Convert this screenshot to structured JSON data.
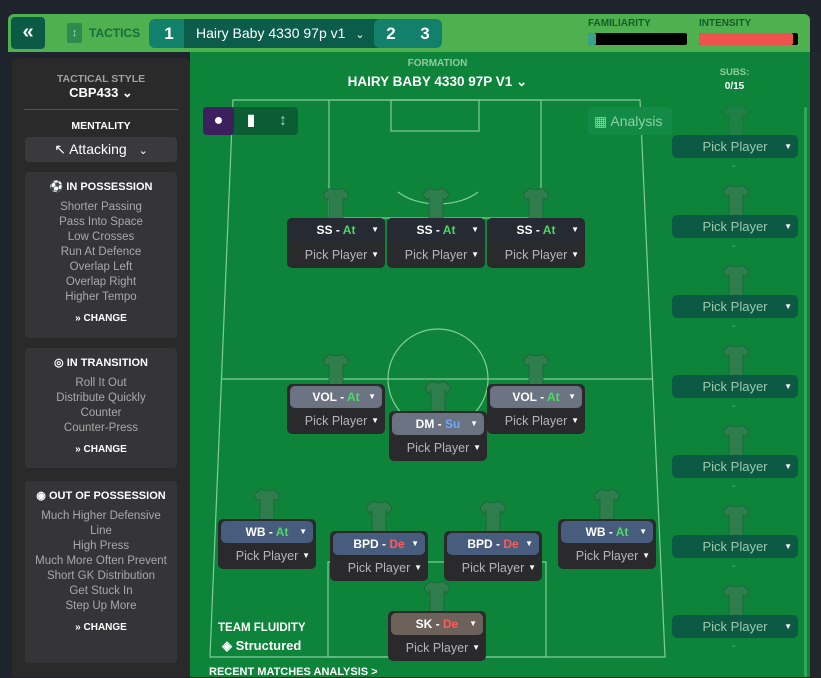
{
  "header": {
    "back_icon": "double-chevron-left-icon",
    "tactics_label": "TACTICS",
    "slot1": "1",
    "tactic_name": "Hairy Baby 4330 97p v1",
    "slot2": "2",
    "slot3": "3",
    "familiarity_label": "FAMILIARITY",
    "intensity_label": "INTENSITY",
    "familiarity_level": 0.08,
    "intensity_level": 0.95,
    "intensity_color": "#ef5350"
  },
  "sidebar": {
    "tactical_style_label": "TACTICAL STYLE",
    "tactical_style": "CBP433",
    "mentality_label": "MENTALITY",
    "mentality": "Attacking",
    "in_possession": {
      "title": "IN POSSESSION",
      "items": [
        "Shorter Passing",
        "Pass Into Space",
        "Low Crosses",
        "Run At Defence",
        "Overlap Left",
        "Overlap Right",
        "Higher Tempo"
      ],
      "change": "CHANGE"
    },
    "in_transition": {
      "title": "IN TRANSITION",
      "items": [
        "Roll It Out",
        "Distribute Quickly",
        "Counter",
        "Counter-Press"
      ],
      "change": "CHANGE"
    },
    "out_of_possession": {
      "title": "OUT OF POSSESSION",
      "items": [
        "Much Higher Defensive Line",
        "High Press",
        "Much More Often Prevent Short GK Distribution",
        "Get Stuck In",
        "Step Up More"
      ],
      "change": "CHANGE"
    }
  },
  "formation": {
    "label": "FORMATION",
    "name": "HAIRY BABY 4330 97P V1",
    "analysis": "Analysis",
    "team_fluidity_label": "TEAM FLUIDITY",
    "team_fluidity": "Structured",
    "recent": "RECENT MATCHES ANALYSIS >"
  },
  "players": [
    {
      "role": "SS",
      "duty": "At",
      "pick": "Pick Player",
      "style": "dark"
    },
    {
      "role": "SS",
      "duty": "At",
      "pick": "Pick Player",
      "style": "dark"
    },
    {
      "role": "SS",
      "duty": "At",
      "pick": "Pick Player",
      "style": "dark"
    },
    {
      "role": "VOL",
      "duty": "At",
      "pick": "Pick Player",
      "style": "gray"
    },
    {
      "role": "DM",
      "duty": "Su",
      "pick": "Pick Player",
      "style": "gray"
    },
    {
      "role": "VOL",
      "duty": "At",
      "pick": "Pick Player",
      "style": "gray"
    },
    {
      "role": "WB",
      "duty": "At",
      "pick": "Pick Player",
      "style": "blue"
    },
    {
      "role": "BPD",
      "duty": "De",
      "pick": "Pick Player",
      "style": "blue"
    },
    {
      "role": "BPD",
      "duty": "De",
      "pick": "Pick Player",
      "style": "blue"
    },
    {
      "role": "WB",
      "duty": "At",
      "pick": "Pick Player",
      "style": "blue"
    },
    {
      "role": "SK",
      "duty": "De",
      "pick": "Pick Player",
      "style": "brown"
    }
  ],
  "duty_colors": {
    "At": "#4cd964",
    "Su": "#6fa8ff",
    "De": "#ff5a5a"
  },
  "subs": {
    "label": "SUBS:",
    "count": "0/15",
    "items": [
      "Pick Player",
      "Pick Player",
      "Pick Player",
      "Pick Player",
      "Pick Player",
      "Pick Player",
      "Pick Player"
    ]
  }
}
